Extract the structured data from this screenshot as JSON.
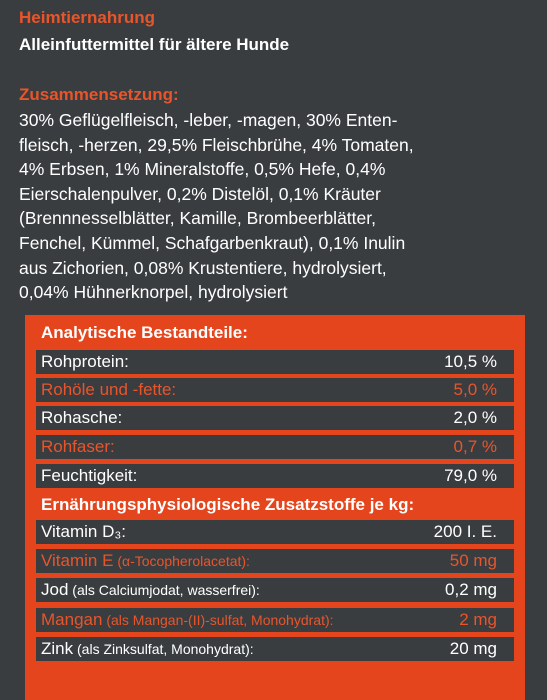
{
  "category": "Heimtiernahrung",
  "subtitle": "Alleinfuttermittel für ältere Hunde",
  "composition": {
    "heading": "Zusammensetzung:",
    "lines": [
      "30% Geflügelfleisch, -leber, -magen, 30% Enten-",
      "fleisch, -herzen, 29,5% Fleischbrühe, 4% Tomaten,",
      "4% Erbsen, 1% Mineralstoffe, 0,5% Hefe, 0,4%",
      "Eierschalenpulver, 0,2% Distelöl, 0,1% Kräuter",
      "(Brennnesselblätter, Kamille, Brombeerblätter,",
      "Fenchel, Kümmel, Schafgarbenkraut), 0,1% Inulin",
      "aus Zichorien, 0,08% Krustentiere, hydrolysiert,",
      "0,04% Hühnerknorpel, hydrolysiert"
    ]
  },
  "analytical": {
    "heading": "Analytische Bestandteile:",
    "rows": [
      {
        "label": "Rohprotein:",
        "value": "10,5 %"
      },
      {
        "label": "Rohöle und -fette:",
        "value": "5,0 %"
      },
      {
        "label": "Rohasche:",
        "value": "2,0 %"
      },
      {
        "label": "Rohfaser:",
        "value": "0,7 %"
      },
      {
        "label": "Feuchtigkeit:",
        "value": "79,0 %"
      }
    ]
  },
  "additives": {
    "heading": "Ernährungsphysiologische Zusatzstoffe je kg:",
    "rows": [
      {
        "label": "Vitamin D₃:",
        "note": "",
        "value": "200 I. E."
      },
      {
        "label": "Vitamin E",
        "note": " (α-Tocopherolacetat):",
        "value": "50 mg"
      },
      {
        "label": "Jod",
        "note": " (als Calciumjodat, wasserfrei):",
        "value": "0,2 mg"
      },
      {
        "label": "Mangan",
        "note": " (als Mangan-(II)-sulfat, Monohydrat):",
        "value": "2 mg"
      },
      {
        "label": "Zink",
        "note": " (als Zinksulfat, Monohydrat):",
        "value": "20 mg"
      }
    ]
  }
}
